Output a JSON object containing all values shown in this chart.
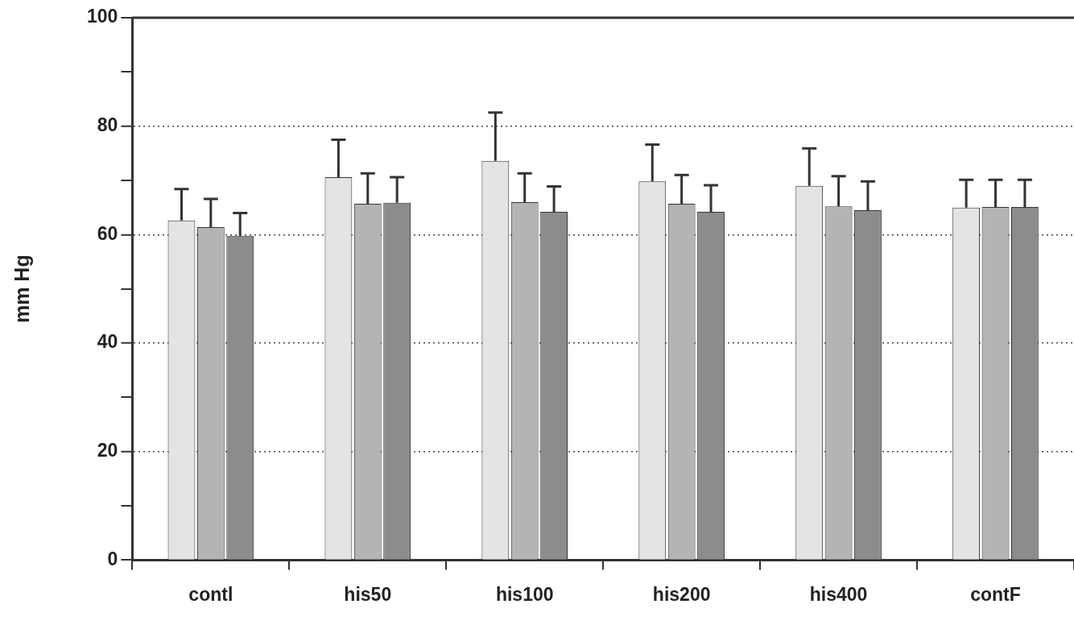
{
  "chart_data": {
    "type": "bar",
    "ylabel": "mm Hg",
    "categories": [
      "contl",
      "his50",
      "his100",
      "his200",
      "his400",
      "contF"
    ],
    "series": [
      {
        "color": "#e4e4e4",
        "values": [
          62.6,
          70.6,
          73.6,
          69.8,
          69.0,
          65.0
        ],
        "errors": [
          [
            62.6,
            68.4
          ],
          [
            70.6,
            77.5
          ],
          [
            73.6,
            82.5
          ],
          [
            69.8,
            76.6
          ],
          [
            69.0,
            75.9
          ],
          [
            65.0,
            70.1
          ]
        ]
      },
      {
        "color": "#b4b4b4",
        "values": [
          61.4,
          65.7,
          66.0,
          65.7,
          65.2,
          65.1
        ],
        "errors": [
          [
            61.4,
            66.6
          ],
          [
            65.7,
            71.3
          ],
          [
            66.0,
            71.3
          ],
          [
            65.7,
            71.0
          ],
          [
            65.2,
            70.8
          ],
          [
            65.1,
            70.1
          ]
        ]
      },
      {
        "color": "#8c8c8c",
        "values": [
          59.8,
          65.9,
          64.2,
          64.2,
          64.5,
          65.1
        ],
        "errors": [
          [
            59.8,
            64.0
          ],
          [
            65.9,
            70.6
          ],
          [
            64.2,
            68.9
          ],
          [
            64.2,
            69.1
          ],
          [
            64.5,
            69.8
          ],
          [
            65.1,
            70.1
          ]
        ]
      }
    ],
    "ylim": [
      0,
      100
    ],
    "yticks": [
      0,
      {
        "value": 10,
        "label": null
      },
      20,
      {
        "value": 30,
        "label": null
      },
      40,
      {
        "value": 50,
        "label": null
      },
      60,
      {
        "value": 70,
        "label": null
      },
      80,
      {
        "value": 90,
        "label": null
      },
      100
    ],
    "grid": "y",
    "legend": false
  }
}
